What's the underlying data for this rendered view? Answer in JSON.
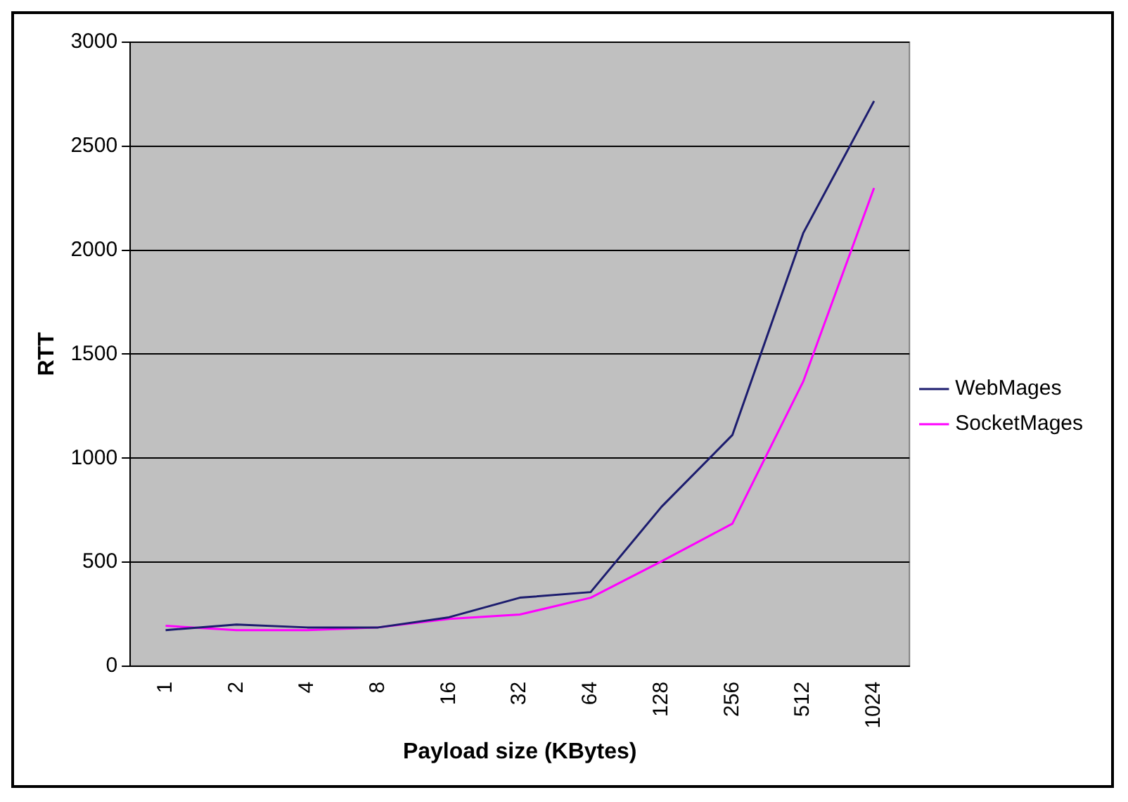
{
  "chart_data": {
    "type": "line",
    "xlabel": "Payload size (KBytes)",
    "ylabel": "RTT",
    "categories": [
      "1",
      "2",
      "4",
      "8",
      "16",
      "32",
      "64",
      "128",
      "256",
      "512",
      "1024"
    ],
    "series": [
      {
        "name": "WebMages",
        "color": "#1c1c6e",
        "values": [
          173,
          200,
          186,
          186,
          235,
          329,
          356,
          766,
          1111,
          2082,
          2717
        ]
      },
      {
        "name": "SocketMages",
        "color": "#ff00ff",
        "values": [
          194,
          173,
          173,
          186,
          227,
          248,
          329,
          504,
          685,
          1368,
          2299
        ]
      }
    ],
    "ylim": [
      0,
      3000
    ],
    "yticks": [
      0,
      500,
      1000,
      1500,
      2000,
      2500,
      3000
    ],
    "grid": "y",
    "legend": "right",
    "marker": "none",
    "line_style": "solid"
  }
}
